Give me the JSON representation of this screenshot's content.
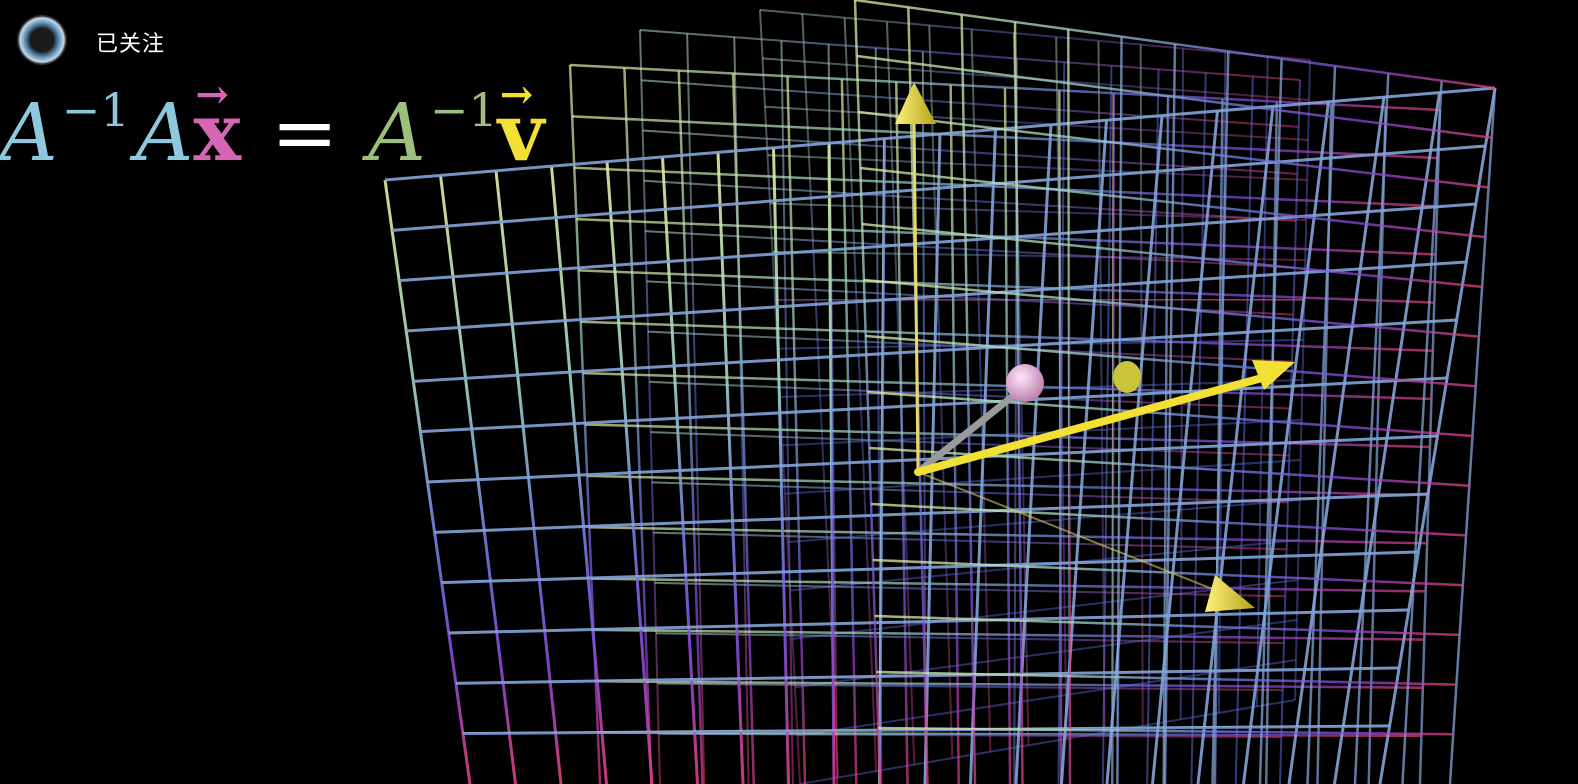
{
  "header": {
    "avatar_icon": "channel-avatar-icon",
    "follow_label": "已关注"
  },
  "equation": {
    "A1": "A",
    "exp1": "−1",
    "A2": "A",
    "x": "x",
    "equals": "=",
    "A3": "A",
    "exp2": "−1",
    "v": "v",
    "vec_arrow": "→",
    "colors": {
      "A_inverse_left": "#8ec8de",
      "x": "#d466b5",
      "A_inverse_right": "#9cbf7c",
      "v": "#f2e033"
    }
  },
  "scene": {
    "background": "#000000",
    "grid_colors": [
      "#d8e6a0",
      "#9fd8c8",
      "#6f8fd8",
      "#6a4bd0",
      "#c040c8",
      "#e04080"
    ],
    "vector_v_color": "#f2e033",
    "vector_x_color": "#9a9a9a",
    "sphere_x_color": "#e6b0dc",
    "axis_cone_color": "#e6d23a"
  }
}
